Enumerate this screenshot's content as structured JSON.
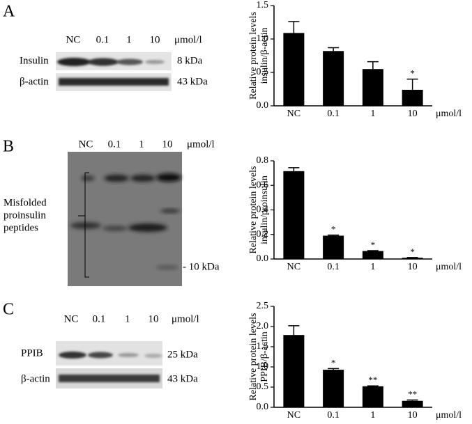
{
  "panels": [
    {
      "letter": "A",
      "lanes": [
        "NC",
        "0.1",
        "1",
        "10"
      ],
      "unit": "μmol/l",
      "rows": [
        {
          "label": "Insulin",
          "size": "8 kDa"
        },
        {
          "label": "β-actin",
          "size": "43 kDa"
        }
      ]
    },
    {
      "letter": "B",
      "lanes": [
        "NC",
        "0.1",
        "1",
        "10"
      ],
      "unit": "μmol/l",
      "bracket_label": [
        "Misfolded",
        "proinsulin",
        "peptides"
      ],
      "marker": "- 10 kDa"
    },
    {
      "letter": "C",
      "lanes": [
        "NC",
        "0.1",
        "1",
        "10"
      ],
      "unit": "μmol/l",
      "rows": [
        {
          "label": "PPIB",
          "size": "25 kDa"
        },
        {
          "label": "β-actin",
          "size": "43 kDa"
        }
      ]
    }
  ],
  "chart_data": [
    {
      "type": "bar",
      "ylabel": [
        "Relative protein levels",
        "insulin/β-actin"
      ],
      "xlabel": "μmol/l",
      "categories": [
        "NC",
        "0.1",
        "1",
        "10"
      ],
      "values": [
        1.09,
        0.82,
        0.55,
        0.24
      ],
      "errors": [
        0.17,
        0.05,
        0.11,
        0.16
      ],
      "annotations": [
        null,
        null,
        null,
        "*"
      ],
      "color": "#000000",
      "ylim": [
        0,
        1.5
      ],
      "yticks": [
        {
          "value": 0,
          "label": "0.0"
        },
        {
          "value": 0.5,
          "label": "0.5"
        },
        {
          "value": 1,
          "label": "1.0"
        },
        {
          "value": 1.5,
          "label": "1.5"
        }
      ]
    },
    {
      "type": "bar",
      "ylabel": [
        "Relative protein levels",
        "insulin/proinsulin"
      ],
      "xlabel": "μmol/l",
      "categories": [
        "NC",
        "0.1",
        "1",
        "10"
      ],
      "values": [
        0.716,
        0.19,
        0.065,
        0.01
      ],
      "errors": [
        0.028,
        0.005,
        0.003,
        0.002
      ],
      "annotations": [
        null,
        "*",
        "*",
        "*"
      ],
      "color": "#000000",
      "ylim": [
        0,
        0.8
      ],
      "yticks": [
        {
          "value": 0,
          "label": "0.0"
        },
        0.2,
        0.4,
        0.6,
        0.8
      ]
    },
    {
      "type": "bar",
      "ylabel": [
        "Relative protein levels",
        "PPIB/β-actin"
      ],
      "xlabel": "μmol/l",
      "categories": [
        "NC",
        "0.1",
        "1",
        "10"
      ],
      "values": [
        1.79,
        0.93,
        0.52,
        0.16
      ],
      "errors": [
        0.23,
        0.03,
        0.01,
        0.02
      ],
      "annotations": [
        null,
        "*",
        "**",
        "**"
      ],
      "color": "#000000",
      "ylim": [
        0,
        2.5
      ],
      "yticks": [
        {
          "value": 0,
          "label": "0.0"
        },
        {
          "value": 0.5,
          "label": "0.5"
        },
        {
          "value": 1,
          "label": "1.0"
        },
        {
          "value": 1.5,
          "label": "1.5"
        },
        {
          "value": 2,
          "label": "2.0"
        },
        {
          "value": 2.5,
          "label": "2.5"
        }
      ]
    }
  ]
}
